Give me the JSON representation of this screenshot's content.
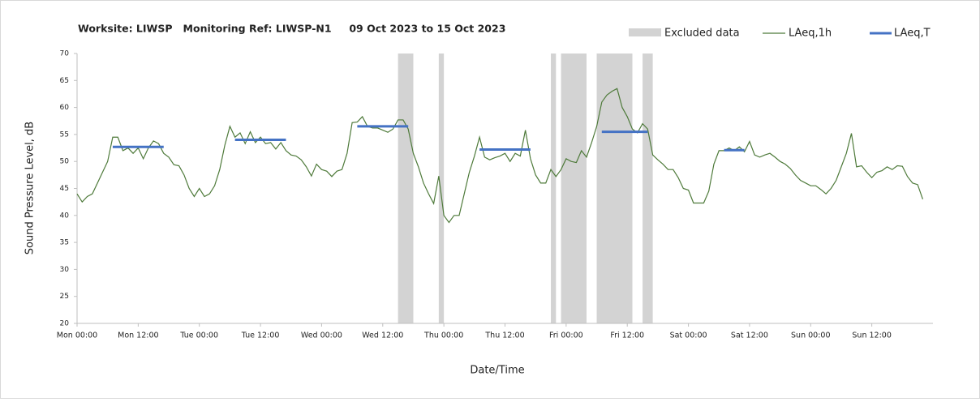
{
  "chart_data": {
    "type": "line",
    "title": "Worksite: LIWSP   Monitoring Ref: LIWSP-N1     09 Oct 2023 to 15 Oct 2023",
    "x_label": "Date/Time",
    "y_label": "Sound Pressure Level, dB",
    "xlim": [
      0,
      168
    ],
    "ylim": [
      20,
      70
    ],
    "yticks": [
      20,
      25,
      30,
      35,
      40,
      45,
      50,
      55,
      60,
      65,
      70
    ],
    "xticks": [
      {
        "value": 0,
        "label": "Mon 00:00"
      },
      {
        "value": 12,
        "label": "Mon 12:00"
      },
      {
        "value": 24,
        "label": "Tue 00:00"
      },
      {
        "value": 36,
        "label": "Tue 12:00"
      },
      {
        "value": 48,
        "label": "Wed 00:00"
      },
      {
        "value": 60,
        "label": "Wed 12:00"
      },
      {
        "value": 72,
        "label": "Thu 00:00"
      },
      {
        "value": 84,
        "label": "Thu 12:00"
      },
      {
        "value": 96,
        "label": "Fri 00:00"
      },
      {
        "value": 108,
        "label": "Fri 12:00"
      },
      {
        "value": 120,
        "label": "Sat 00:00"
      },
      {
        "value": 132,
        "label": "Sat 12:00"
      },
      {
        "value": 144,
        "label": "Sun 00:00"
      },
      {
        "value": 156,
        "label": "Sun 12:00"
      }
    ],
    "grid": false,
    "legend": "top-right",
    "excluded": {
      "name": "Excluded data",
      "color": "#d3d3d3",
      "ranges": [
        [
          63,
          66
        ],
        [
          71,
          72
        ],
        [
          93,
          94
        ],
        [
          95,
          100
        ],
        [
          102,
          109
        ],
        [
          111,
          113
        ]
      ]
    },
    "series": [
      {
        "name": "LAeq,1h",
        "color": "#4e7a3a",
        "x": [
          0,
          1,
          2,
          3,
          4,
          5,
          6,
          7,
          8,
          9,
          10,
          11,
          12,
          13,
          14,
          15,
          16,
          17,
          18,
          19,
          20,
          21,
          22,
          23,
          24,
          25,
          26,
          27,
          28,
          29,
          30,
          31,
          32,
          33,
          34,
          35,
          36,
          37,
          38,
          39,
          40,
          41,
          42,
          43,
          44,
          45,
          46,
          47,
          48,
          49,
          50,
          51,
          52,
          53,
          54,
          55,
          56,
          57,
          58,
          59,
          60,
          61,
          62,
          63,
          64,
          65,
          66,
          67,
          68,
          69,
          70,
          71,
          72,
          73,
          74,
          75,
          76,
          77,
          78,
          79,
          80,
          81,
          82,
          83,
          84,
          85,
          86,
          87,
          88,
          89,
          90,
          91,
          92,
          93,
          94,
          95,
          96,
          97,
          98,
          99,
          100,
          101,
          102,
          103,
          104,
          105,
          106,
          107,
          108,
          109,
          110,
          111,
          112,
          113,
          114,
          115,
          116,
          117,
          118,
          119,
          120,
          121,
          122,
          123,
          124,
          125,
          126,
          127,
          128,
          129,
          130,
          131,
          132,
          133,
          134,
          135,
          136,
          137,
          138,
          139,
          140,
          141,
          142,
          143,
          144,
          145,
          146,
          147,
          148,
          149,
          150,
          151,
          152,
          153,
          154,
          155,
          156,
          157,
          158,
          159,
          160,
          161,
          162,
          163,
          164,
          165,
          166
        ],
        "values": [
          44,
          42.5,
          43.5,
          44,
          46,
          48,
          50,
          54.5,
          54.5,
          52,
          52.5,
          51.5,
          52.5,
          50.5,
          52.5,
          53.8,
          53.3,
          51.5,
          50.8,
          49.4,
          49.2,
          47.5,
          45,
          43.5,
          45,
          43.5,
          44,
          45.5,
          48.5,
          53,
          56.5,
          54.5,
          55.3,
          53.3,
          55.5,
          53.5,
          54.5,
          53.3,
          53.5,
          52.3,
          53.5,
          52,
          51.2,
          51,
          50.3,
          49,
          47.3,
          49.5,
          48.5,
          48.2,
          47.2,
          48.2,
          48.5,
          51.5,
          57.2,
          57.3,
          58.3,
          56.5,
          56.2,
          56.2,
          55.8,
          55.4,
          56,
          57.7,
          57.7,
          56,
          51.5,
          49,
          46,
          44,
          42.2,
          47.3,
          40,
          38.7,
          40,
          40,
          44,
          48,
          51,
          54.5,
          50.8,
          50.3,
          50.7,
          51,
          51.5,
          50,
          51.5,
          51,
          55.8,
          50.5,
          47.5,
          46,
          46,
          48.5,
          47.2,
          48.5,
          50.5,
          50,
          49.8,
          52,
          50.8,
          53.5,
          56.5,
          61,
          62.3,
          63,
          63.5,
          60,
          58.3,
          56,
          55.3,
          57,
          56,
          51.2,
          50.3,
          49.5,
          48.5,
          48.5,
          47,
          45,
          44.7,
          42.3,
          42.3,
          42.3,
          44.5,
          49.5,
          52,
          52,
          52.5,
          52,
          52.7,
          51.8,
          53.7,
          51.2,
          50.8,
          51.2,
          51.5,
          50.8,
          50,
          49.5,
          48.7,
          47.5,
          46.5,
          46,
          45.5,
          45.5,
          44.8,
          44,
          45,
          46.5,
          49,
          51.5,
          55.2,
          49,
          49.2,
          48,
          47,
          48,
          48.3,
          49,
          48.5,
          49.2,
          49.1,
          47.2,
          46,
          45.7,
          43
        ]
      },
      {
        "name": "LAeq,T",
        "color": "#4472c4",
        "x_start": [
          7,
          31,
          55,
          79,
          103,
          127
        ],
        "x_end": [
          17,
          41,
          65,
          89,
          112,
          131
        ],
        "values": [
          52.7,
          54,
          56.5,
          52.2,
          55.5,
          52.1
        ]
      }
    ]
  }
}
